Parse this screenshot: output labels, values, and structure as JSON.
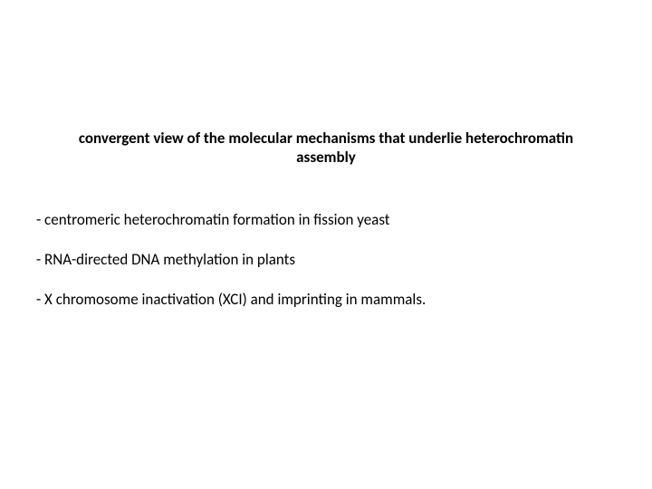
{
  "slide": {
    "background_color": "#ffffff",
    "title": {
      "text": "convergent view of the molecular mechanisms that underlie heterochromatin assembly",
      "font_size": 17,
      "font_weight": 700,
      "color": "#000000",
      "align": "center"
    },
    "bullets": [
      {
        "text": "- centromeric heterochromatin formation in fission yeast"
      },
      {
        "text": "- RNA-directed DNA methylation in plants"
      },
      {
        "text": "- X chromosome inactivation (XCI) and imprinting in mammals."
      }
    ],
    "bullet_style": {
      "font_size": 17,
      "font_weight": 400,
      "color": "#000000",
      "line_spacing": 22
    }
  }
}
